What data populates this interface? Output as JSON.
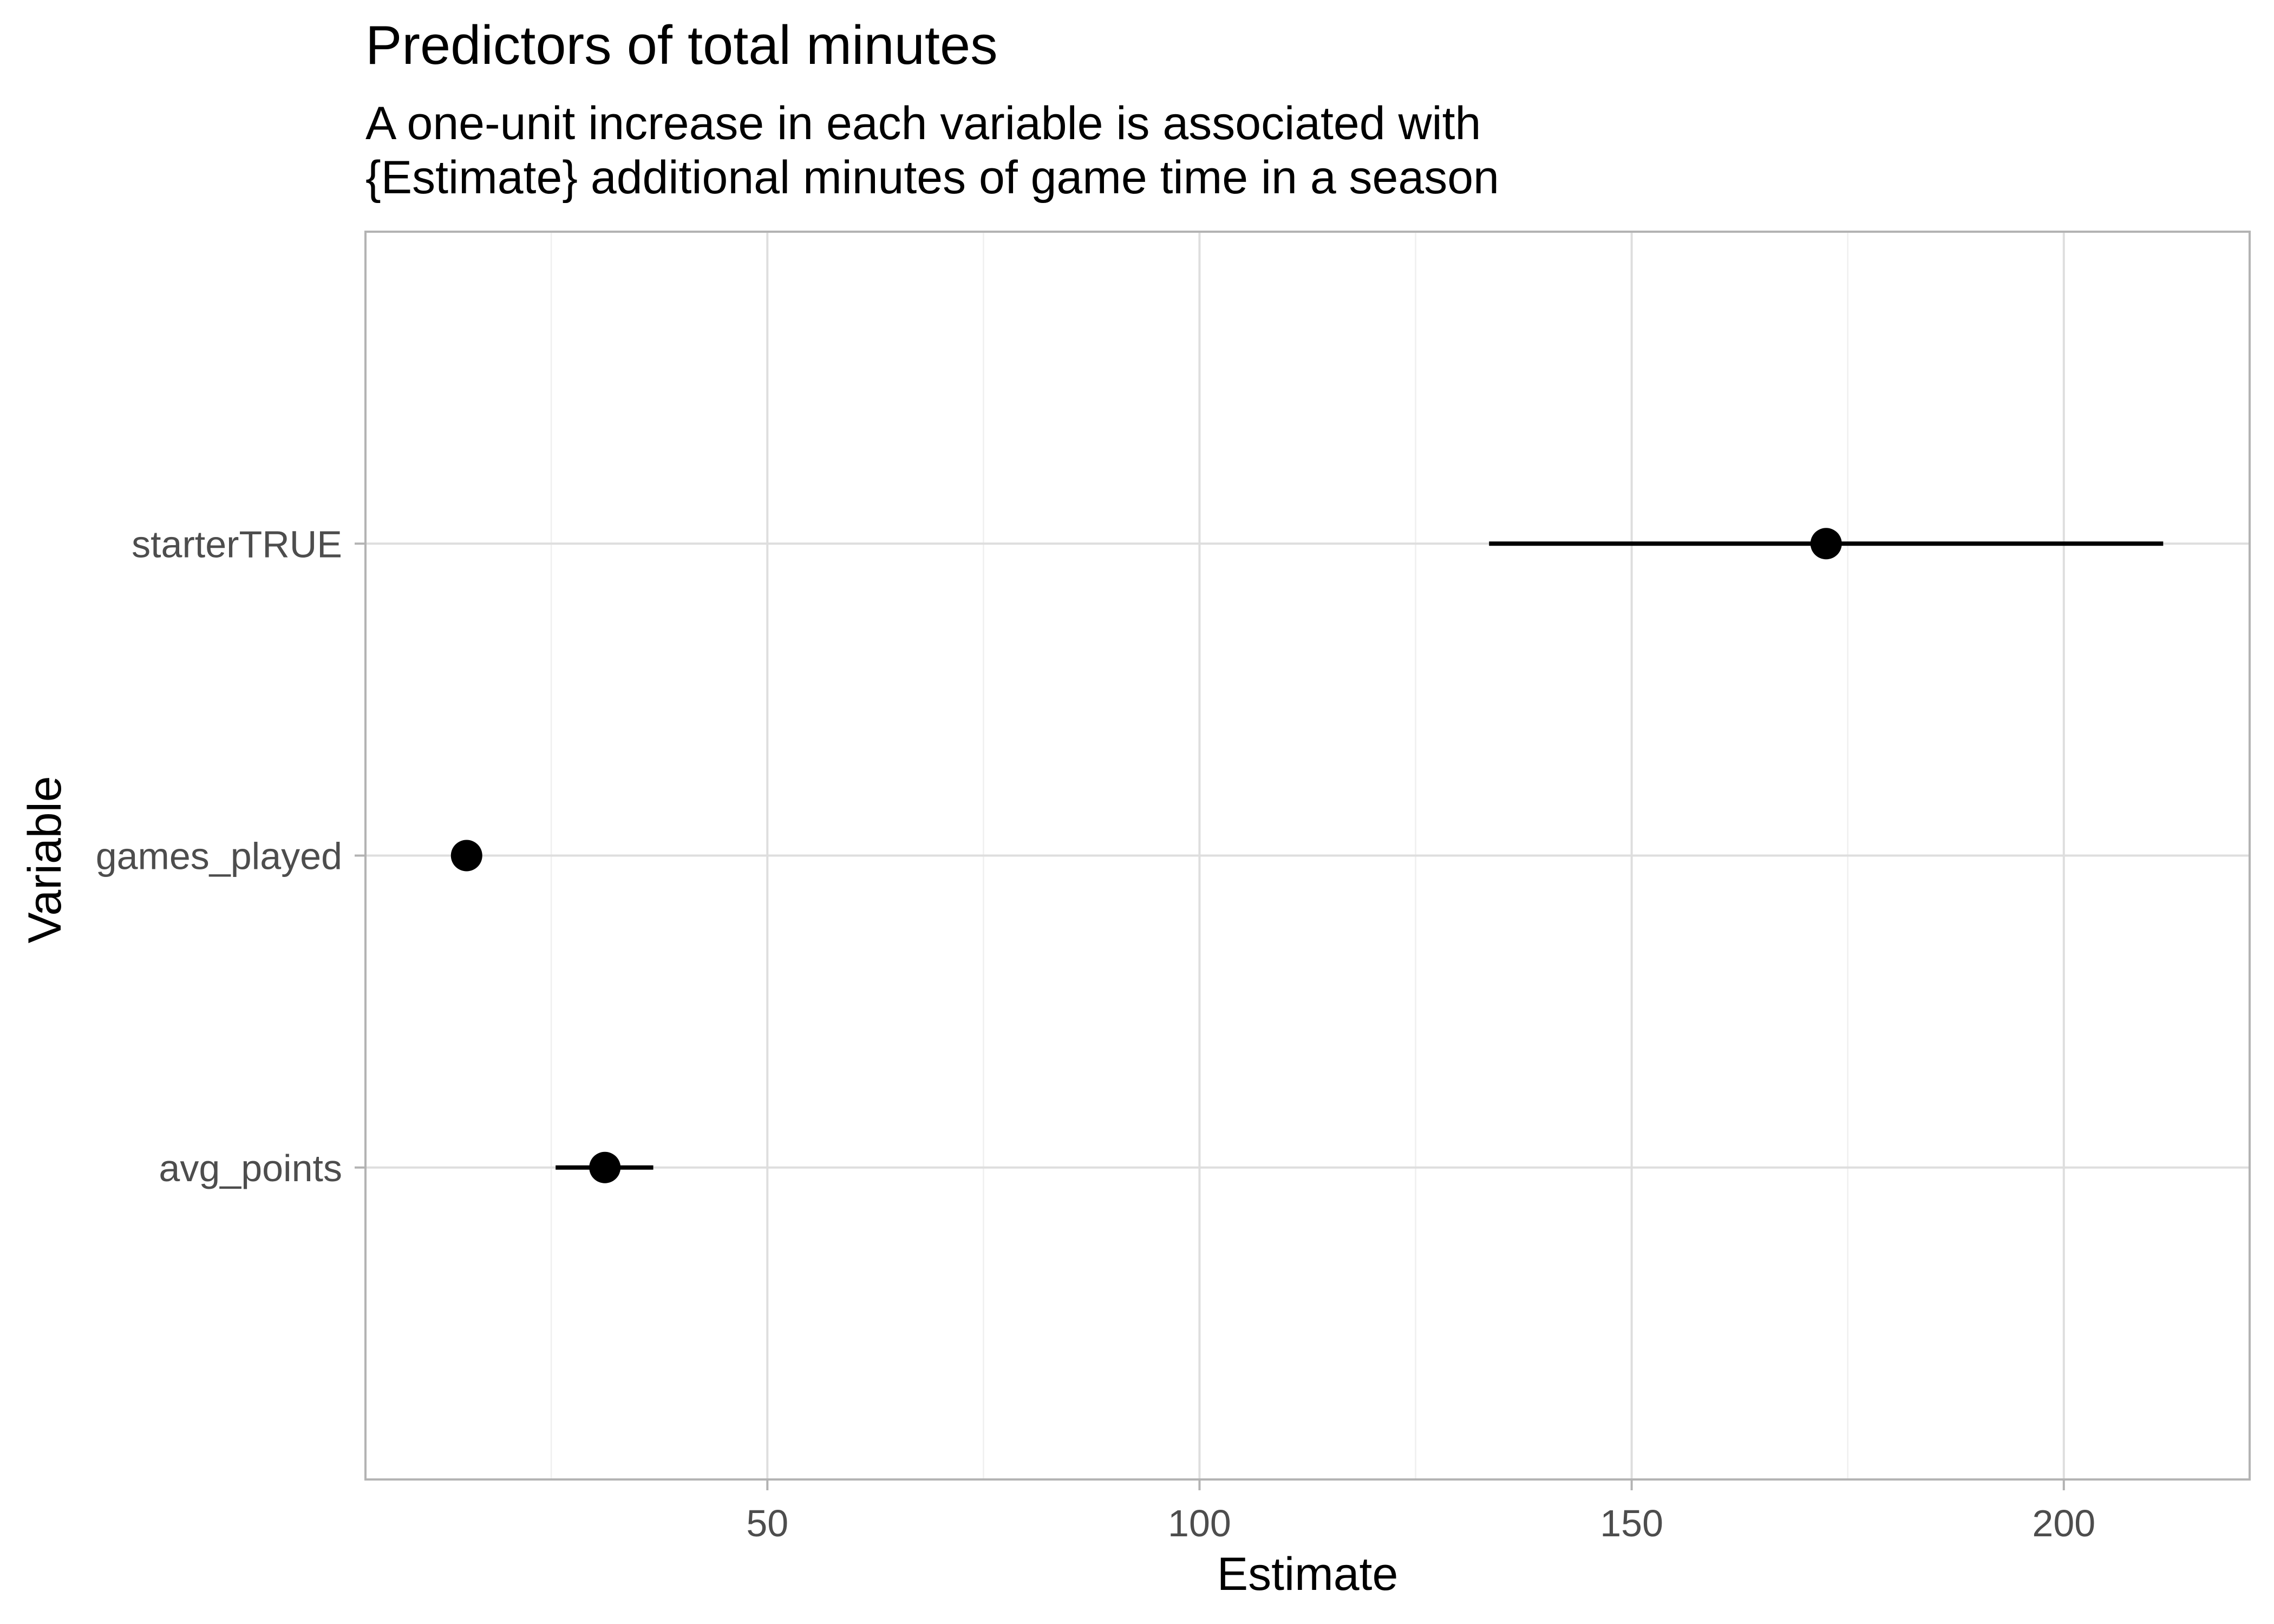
{
  "chart_data": {
    "type": "scatter",
    "subtype": "coefficient-plot",
    "title": "Predictors of total minutes",
    "subtitle": [
      "A one-unit increase in each variable is associated with",
      "{Estimate} additional minutes of game time in a season"
    ],
    "xlabel": "Estimate",
    "ylabel": "Variable",
    "xlim": [
      3.5,
      221.5
    ],
    "x_ticks": [
      50,
      100,
      150,
      200
    ],
    "x_tick_labels": [
      "50",
      "100",
      "150",
      "200"
    ],
    "x_minor_ticks": [
      25,
      75,
      125,
      175
    ],
    "grid": true,
    "legend": "none",
    "categories": [
      "starterTRUE",
      "games_played",
      "avg_points"
    ],
    "points": [
      {
        "variable": "starterTRUE",
        "estimate": 172.5,
        "ci_low": 133.5,
        "ci_high": 211.5
      },
      {
        "variable": "games_played",
        "estimate": 15.2
      },
      {
        "variable": "avg_points",
        "estimate": 31.2,
        "ci_low": 25.5,
        "ci_high": 36.8
      }
    ],
    "colors": {
      "point": "#000000",
      "panel_border": "#b3b3b3",
      "grid_major": "#dedede",
      "grid_minor": "#efefef",
      "tick_text": "#4d4d4d"
    }
  }
}
